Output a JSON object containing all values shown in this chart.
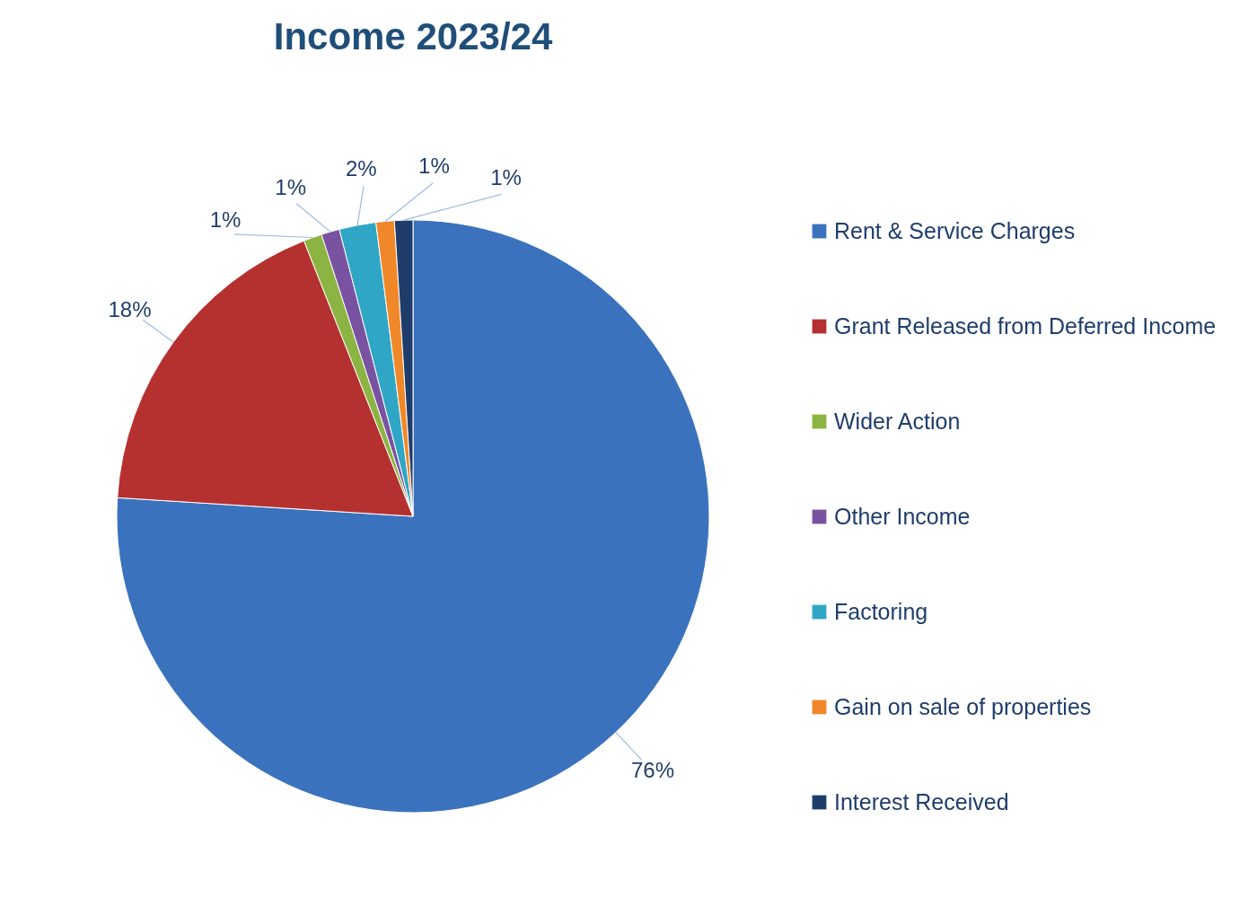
{
  "chart_data": {
    "type": "pie",
    "title": "Income 2023/24",
    "categories": [
      "Rent & Service Charges",
      "Grant Released from Deferred Income",
      "Wider Action",
      "Other Income",
      "Factoring",
      "Gain on sale of properties",
      "Interest Received"
    ],
    "values": [
      76,
      18,
      1,
      1,
      2,
      1,
      1
    ],
    "value_labels": [
      "76%",
      "18%",
      "1%",
      "1%",
      "2%",
      "1%",
      "1%"
    ],
    "colors": [
      "#3a72bd",
      "#b5312f",
      "#8cb443",
      "#7953a1",
      "#2fa6c6",
      "#f08829",
      "#1f3d6b"
    ],
    "legend": "right"
  }
}
